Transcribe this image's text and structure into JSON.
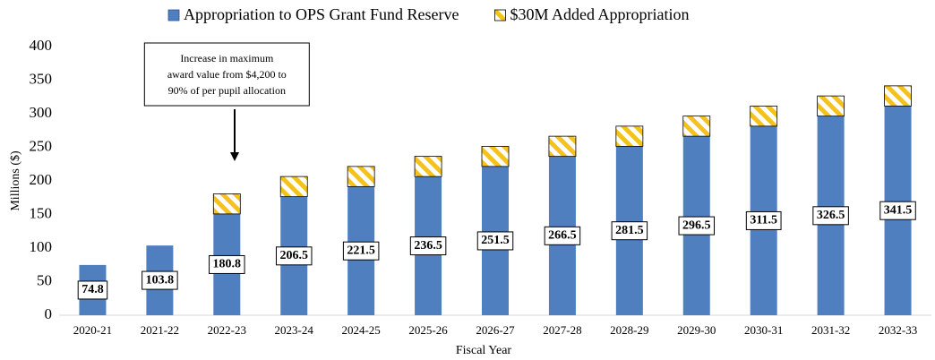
{
  "chart_data": {
    "type": "stacked_bar",
    "x_label": "Fiscal Year",
    "y_label": "Millions ($)",
    "categories": [
      "2020-21",
      "2021-22",
      "2022-23",
      "2023-24",
      "2024-25",
      "2025-26",
      "2026-27",
      "2027-28",
      "2028-29",
      "2029-30",
      "2030-31",
      "2031-32",
      "2032-33"
    ],
    "series": [
      {
        "name": "Appropriation to OPS Grant Fund Reserve",
        "color": "#4f7fbf",
        "values": [
          74.8,
          103.8,
          150.8,
          176.5,
          191.5,
          206.5,
          221.5,
          236.5,
          251.5,
          266.5,
          281.5,
          296.5,
          311.5
        ]
      },
      {
        "name": "$30M Added Appropriation",
        "color": "#f5c21b",
        "pattern": "hatch",
        "values": [
          null,
          null,
          30,
          30,
          30,
          30,
          30,
          30,
          30,
          30,
          30,
          30,
          30
        ]
      }
    ],
    "totals": [
      74.8,
      103.8,
      180.8,
      206.5,
      221.5,
      236.5,
      251.5,
      266.5,
      281.5,
      296.5,
      311.5,
      326.5,
      341.5
    ],
    "ylim": [
      0,
      400
    ],
    "yticks": [
      0,
      50,
      100,
      150,
      200,
      250,
      300,
      350,
      400
    ],
    "legend": "top",
    "annotation": {
      "category": 2,
      "lines": [
        "Increase in maximum",
        "award value from $4,200 to",
        "90% of per pupil allocation"
      ]
    }
  }
}
